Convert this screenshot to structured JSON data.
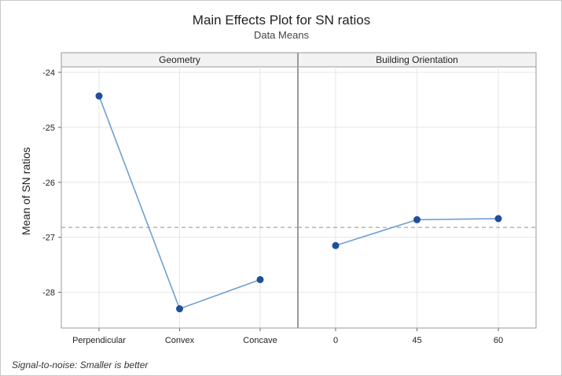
{
  "chart_data": {
    "type": "line",
    "title": "Main Effects Plot for SN ratios",
    "subtitle": "Data Means",
    "ylabel": "Mean of SN ratios",
    "ylim": [
      -28.65,
      -23.9
    ],
    "yticks": [
      -24,
      -25,
      -26,
      -27,
      -28
    ],
    "reference_line": -26.82,
    "grid": true,
    "footnote": "Signal-to-noise: Smaller is better",
    "line_color": "#6e9fd3",
    "marker_color": "#1f4e9c",
    "panels": [
      {
        "label": "Geometry",
        "categories": [
          "Perpendicular",
          "Convex",
          "Concave"
        ],
        "values": [
          -24.43,
          -28.3,
          -27.77
        ]
      },
      {
        "label": "Building Orientation",
        "categories": [
          "0",
          "45",
          "60"
        ],
        "values": [
          -27.15,
          -26.68,
          -26.66
        ]
      }
    ]
  }
}
